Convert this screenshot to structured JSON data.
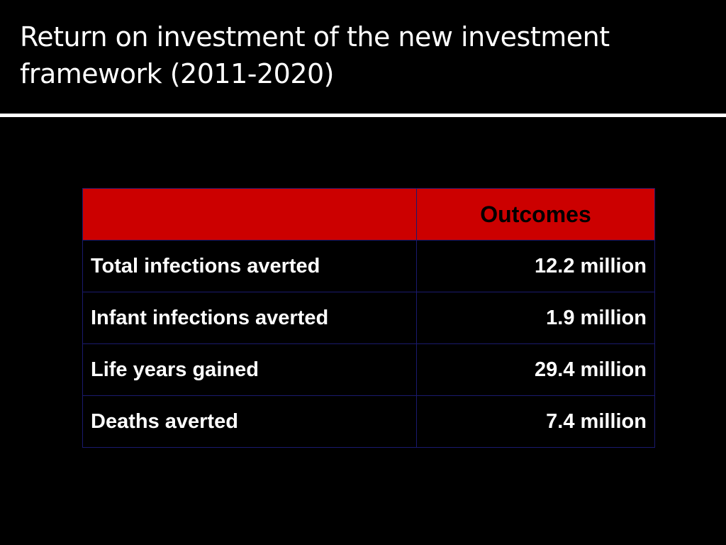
{
  "slide": {
    "title": "Return on investment of the new investment framework (2011-2020)"
  },
  "table": {
    "header": [
      "",
      "Outcomes"
    ],
    "rows": [
      {
        "label": "Total infections averted",
        "value": "12.2 million"
      },
      {
        "label": "Infant infections averted",
        "value": "1.9 million"
      },
      {
        "label": "Life years gained",
        "value": "29.4 million"
      },
      {
        "label": "Deaths averted",
        "value": "7.4 million"
      }
    ]
  },
  "colors": {
    "background": "#000000",
    "header_fill": "#cc0000",
    "title_text": "#ffffff",
    "cell_border": "#1a1a6e"
  }
}
